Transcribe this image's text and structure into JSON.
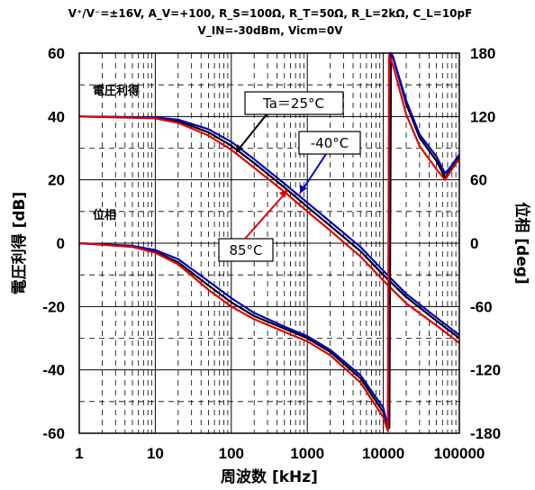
{
  "chart_data": {
    "type": "line",
    "conditions_line1": "V⁺/V⁻=±16V, A_V=+100, R_S=100Ω, R_T=50Ω, R_L=2kΩ, C_L=10pF",
    "conditions_line2": "V_IN=-30dBm, Vicm=0V",
    "xlabel": "周波数 [kHz]",
    "ylabel_left": "電圧利得 [dB]",
    "ylabel_right": "位相 [deg]",
    "x_scale": "log",
    "xlim": [
      1,
      100000
    ],
    "ylim_left": [
      -60,
      60
    ],
    "ylim_right": [
      -180,
      180
    ],
    "x_ticks": [
      "1",
      "10",
      "100",
      "1000",
      "10000",
      "100000"
    ],
    "y_left_ticks": [
      "60",
      "40",
      "20",
      "0",
      "-20",
      "-40",
      "-60"
    ],
    "y_right_ticks": [
      "180",
      "120",
      "60",
      "0",
      "-60",
      "-120",
      "-180"
    ],
    "grid": true,
    "region_labels": [
      "電圧利得",
      "位相"
    ],
    "annotations": [
      {
        "text": "Ta＝25°C",
        "color": "#000000"
      },
      {
        "text": "-40°C",
        "color": "#0000cc"
      },
      {
        "text": "85°C",
        "color": "#e00000"
      }
    ],
    "series": [
      {
        "name": "Ta＝25°C",
        "kind": "gain",
        "color": "#000000",
        "x": [
          1,
          10,
          20,
          50,
          100,
          200,
          500,
          1000,
          2000,
          5000,
          10000,
          20000,
          50000,
          100000
        ],
        "y": [
          40,
          39.6,
          38.6,
          35,
          30.8,
          25.3,
          17.6,
          11.5,
          5.5,
          -2.5,
          -10,
          -17,
          -24.5,
          -30
        ]
      },
      {
        "name": "-40°C",
        "kind": "gain",
        "color": "#0000cc",
        "x": [
          1,
          10,
          20,
          50,
          100,
          200,
          500,
          1000,
          2000,
          5000,
          10000,
          20000,
          50000,
          100000
        ],
        "y": [
          40,
          39.7,
          39,
          36,
          32,
          26.5,
          18.8,
          12.8,
          6.8,
          -1.2,
          -8.7,
          -16,
          -23.5,
          -29
        ]
      },
      {
        "name": "85°C",
        "kind": "gain",
        "color": "#e00000",
        "x": [
          1,
          10,
          20,
          50,
          100,
          200,
          500,
          1000,
          2000,
          5000,
          10000,
          20000,
          50000,
          100000
        ],
        "y": [
          40,
          39.4,
          38,
          34,
          29.5,
          23.8,
          16.2,
          10,
          4,
          -4.2,
          -11.8,
          -19,
          -26,
          -31.5
        ]
      },
      {
        "name": "Ta＝25°C",
        "kind": "phase",
        "color": "#000000",
        "x": [
          1,
          5,
          10,
          20,
          50,
          100,
          200,
          500,
          1000,
          2000,
          5000,
          10000,
          12000,
          12600,
          13500,
          14000,
          20000,
          30000,
          50000,
          65000,
          80000,
          100000
        ],
        "y": [
          0,
          -3,
          -8,
          -18,
          -40,
          -56,
          -69,
          -81,
          -90,
          -103,
          -128,
          -160,
          -175,
          180,
          176,
          172,
          132,
          100,
          78,
          62,
          72,
          82
        ]
      },
      {
        "name": "-40°C",
        "kind": "phase",
        "color": "#0000cc",
        "x": [
          1,
          5,
          10,
          20,
          50,
          100,
          200,
          500,
          1000,
          2000,
          5000,
          10000,
          11500,
          12100,
          13000,
          14000,
          20000,
          30000,
          50000,
          65000,
          80000,
          100000
        ],
        "y": [
          0,
          -2.5,
          -6.5,
          -15,
          -36,
          -52,
          -66,
          -79,
          -88,
          -101,
          -125,
          -156,
          -175,
          180,
          177,
          172,
          135,
          103,
          82,
          66,
          74,
          84
        ]
      },
      {
        "name": "85°C",
        "kind": "phase",
        "color": "#e00000",
        "x": [
          1,
          5,
          10,
          20,
          50,
          100,
          200,
          500,
          1000,
          2000,
          5000,
          10000,
          11500,
          11900,
          12500,
          13500,
          20000,
          30000,
          50000,
          65000,
          80000,
          100000
        ],
        "y": [
          0,
          -3.5,
          -9,
          -20,
          -44,
          -60,
          -72,
          -84,
          -93,
          -106,
          -132,
          -165,
          -178,
          178,
          174,
          168,
          122,
          92,
          70,
          60,
          70,
          80
        ]
      }
    ]
  }
}
